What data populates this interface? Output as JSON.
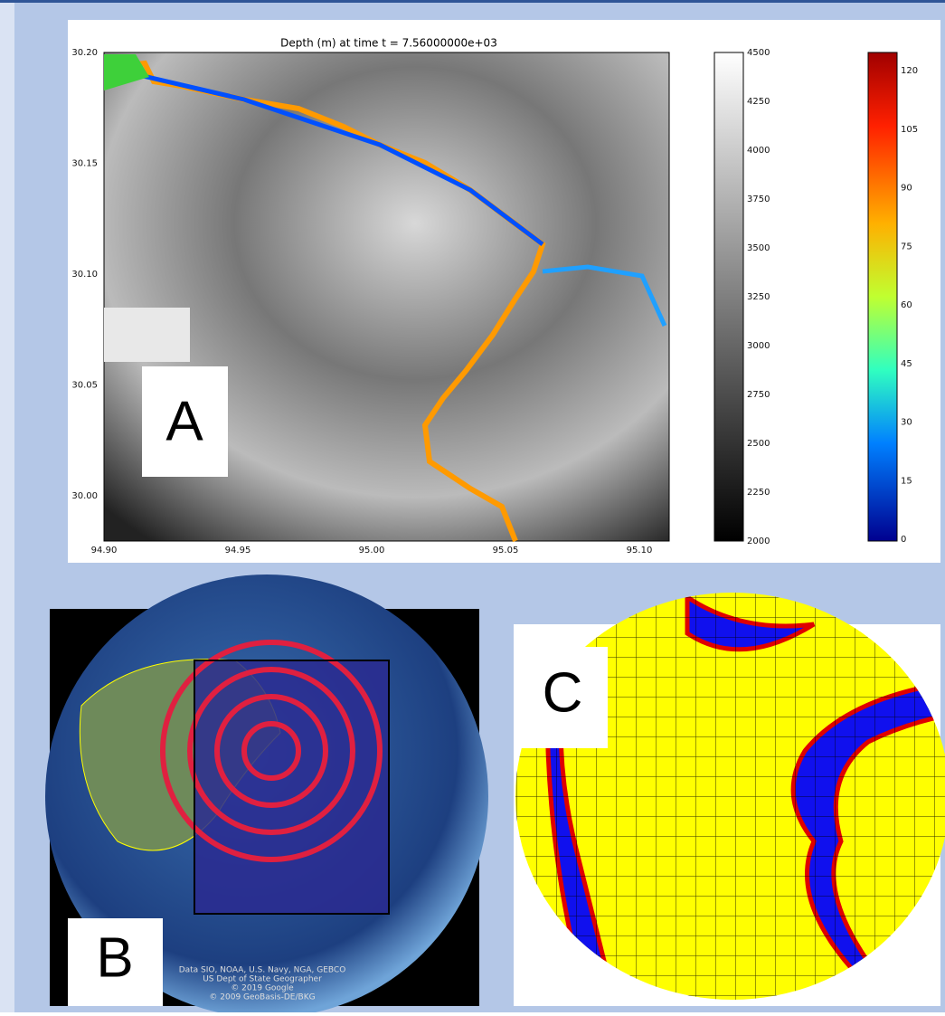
{
  "panel_a": {
    "label": "A",
    "title": "Depth (m) at time t = 7.56000000e+03",
    "x_ticks": [
      "94.90",
      "94.95",
      "95.00",
      "95.05",
      "95.10"
    ],
    "y_ticks": [
      "30.20",
      "30.15",
      "30.10",
      "30.05",
      "30.00"
    ],
    "elevation_colorbar": [
      "4500",
      "4250",
      "4000",
      "3750",
      "3500",
      "3250",
      "3000",
      "2750",
      "2500",
      "2250",
      "2000"
    ],
    "depth_colorbar": [
      "120",
      "105",
      "90",
      "75",
      "60",
      "45",
      "30",
      "15",
      "0"
    ]
  },
  "panel_b": {
    "label": "B",
    "credits": [
      "Data SIO, NOAA, U.S. Navy, NGA, GEBCO",
      "US Dept of State Geographer",
      "© 2019 Google",
      "© 2009 GeoBasis-DE/BKG"
    ]
  },
  "panel_c": {
    "label": "C"
  }
}
